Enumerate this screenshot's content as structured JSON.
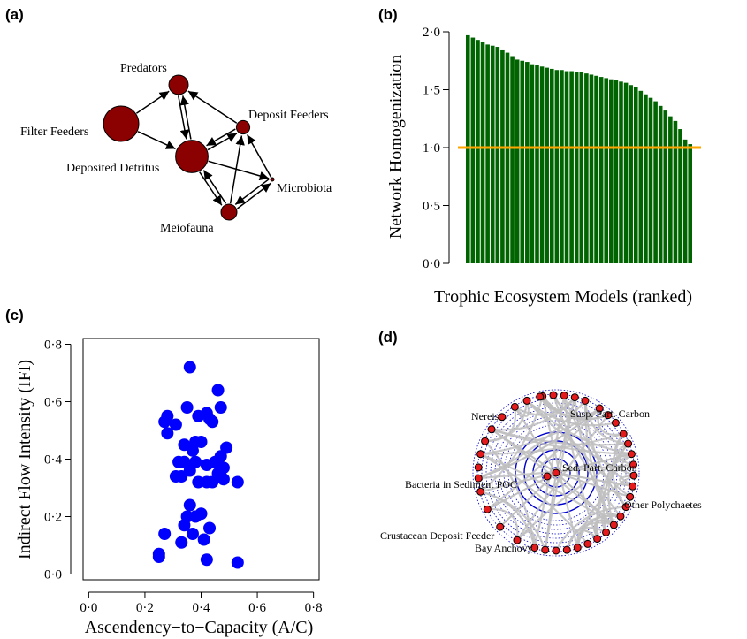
{
  "colors": {
    "node_fill": "#8b0000",
    "bar_fill": "#006400",
    "reference_line": "#ffa500",
    "scatter_point": "#0000ff",
    "network_ring": "#0000cd",
    "network_edge": "#c0c0c0",
    "network_node": "#e41a1c"
  },
  "panels": {
    "a": {
      "label": "(a)"
    },
    "b": {
      "label": "(b)"
    },
    "c": {
      "label": "(c)"
    },
    "d": {
      "label": "(d)"
    }
  },
  "chart_data": [
    {
      "panel": "(a)",
      "type": "network",
      "nodes": [
        {
          "id": "filter",
          "label": "Filter Feeders",
          "relative_size": 1.0
        },
        {
          "id": "predators",
          "label": "Predators",
          "relative_size": 0.55
        },
        {
          "id": "deposit",
          "label": "Deposit Feeders",
          "relative_size": 0.38
        },
        {
          "id": "detritus",
          "label": "Deposited Detritus",
          "relative_size": 0.92
        },
        {
          "id": "microbiota",
          "label": "Microbiota",
          "relative_size": 0.1
        },
        {
          "id": "meiofauna",
          "label": "Meiofauna",
          "relative_size": 0.45
        }
      ],
      "edges": [
        {
          "from": "filter",
          "to": "predators"
        },
        {
          "from": "filter",
          "to": "detritus"
        },
        {
          "from": "predators",
          "to": "detritus"
        },
        {
          "from": "detritus",
          "to": "predators"
        },
        {
          "from": "deposit",
          "to": "predators"
        },
        {
          "from": "deposit",
          "to": "detritus"
        },
        {
          "from": "detritus",
          "to": "deposit"
        },
        {
          "from": "detritus",
          "to": "microbiota"
        },
        {
          "from": "detritus",
          "to": "meiofauna"
        },
        {
          "from": "meiofauna",
          "to": "detritus"
        },
        {
          "from": "microbiota",
          "to": "deposit"
        },
        {
          "from": "microbiota",
          "to": "meiofauna"
        },
        {
          "from": "meiofauna",
          "to": "microbiota"
        },
        {
          "from": "meiofauna",
          "to": "deposit"
        }
      ]
    },
    {
      "panel": "(b)",
      "type": "bar",
      "xlabel": "Trophic Ecosystem Models (ranked)",
      "ylabel": "Network Homogenization",
      "ylim": [
        0,
        2
      ],
      "yticks": [
        "0·0",
        "0·5",
        "1·0",
        "1·5",
        "2·0"
      ],
      "ytick_values": [
        0,
        0.5,
        1.0,
        1.5,
        2.0
      ],
      "reference_line": 1.0,
      "values": [
        1.97,
        1.95,
        1.93,
        1.91,
        1.89,
        1.88,
        1.87,
        1.84,
        1.82,
        1.79,
        1.76,
        1.75,
        1.74,
        1.72,
        1.71,
        1.7,
        1.69,
        1.68,
        1.67,
        1.67,
        1.66,
        1.66,
        1.65,
        1.65,
        1.64,
        1.63,
        1.62,
        1.61,
        1.6,
        1.59,
        1.58,
        1.57,
        1.56,
        1.54,
        1.52,
        1.49,
        1.46,
        1.43,
        1.4,
        1.36,
        1.32,
        1.27,
        1.23,
        1.16,
        1.07,
        1.03
      ]
    },
    {
      "panel": "(c)",
      "type": "scatter",
      "xlabel": "Ascendency−to−Capacity (A/C)",
      "ylabel": "Indirect Flow Intensity (IFI)",
      "xlim": [
        -0.02,
        0.82
      ],
      "ylim": [
        -0.02,
        0.82
      ],
      "xticks": [
        "0·0",
        "0·2",
        "0·4",
        "0·6",
        "0·8"
      ],
      "xtick_values": [
        0,
        0.2,
        0.4,
        0.6,
        0.8
      ],
      "yticks": [
        "0·0",
        "0·2",
        "0·4",
        "0·6",
        "0·8"
      ],
      "ytick_values": [
        0,
        0.2,
        0.4,
        0.6,
        0.8
      ],
      "points": [
        {
          "x": 0.36,
          "y": 0.72
        },
        {
          "x": 0.46,
          "y": 0.64
        },
        {
          "x": 0.35,
          "y": 0.58
        },
        {
          "x": 0.47,
          "y": 0.58
        },
        {
          "x": 0.42,
          "y": 0.56
        },
        {
          "x": 0.28,
          "y": 0.55
        },
        {
          "x": 0.39,
          "y": 0.55
        },
        {
          "x": 0.43,
          "y": 0.54
        },
        {
          "x": 0.44,
          "y": 0.53
        },
        {
          "x": 0.27,
          "y": 0.53
        },
        {
          "x": 0.31,
          "y": 0.52
        },
        {
          "x": 0.28,
          "y": 0.49
        },
        {
          "x": 0.38,
          "y": 0.46
        },
        {
          "x": 0.4,
          "y": 0.46
        },
        {
          "x": 0.34,
          "y": 0.45
        },
        {
          "x": 0.49,
          "y": 0.44
        },
        {
          "x": 0.37,
          "y": 0.43
        },
        {
          "x": 0.47,
          "y": 0.41
        },
        {
          "x": 0.45,
          "y": 0.39
        },
        {
          "x": 0.32,
          "y": 0.39
        },
        {
          "x": 0.34,
          "y": 0.39
        },
        {
          "x": 0.38,
          "y": 0.39
        },
        {
          "x": 0.42,
          "y": 0.38
        },
        {
          "x": 0.48,
          "y": 0.37
        },
        {
          "x": 0.36,
          "y": 0.36
        },
        {
          "x": 0.46,
          "y": 0.35
        },
        {
          "x": 0.31,
          "y": 0.34
        },
        {
          "x": 0.33,
          "y": 0.34
        },
        {
          "x": 0.47,
          "y": 0.34
        },
        {
          "x": 0.48,
          "y": 0.33
        },
        {
          "x": 0.39,
          "y": 0.32
        },
        {
          "x": 0.42,
          "y": 0.32
        },
        {
          "x": 0.44,
          "y": 0.32
        },
        {
          "x": 0.53,
          "y": 0.32
        },
        {
          "x": 0.36,
          "y": 0.24
        },
        {
          "x": 0.4,
          "y": 0.21
        },
        {
          "x": 0.35,
          "y": 0.2
        },
        {
          "x": 0.38,
          "y": 0.2
        },
        {
          "x": 0.34,
          "y": 0.17
        },
        {
          "x": 0.43,
          "y": 0.16
        },
        {
          "x": 0.27,
          "y": 0.14
        },
        {
          "x": 0.37,
          "y": 0.14
        },
        {
          "x": 0.41,
          "y": 0.12
        },
        {
          "x": 0.33,
          "y": 0.11
        },
        {
          "x": 0.25,
          "y": 0.07
        },
        {
          "x": 0.25,
          "y": 0.06
        },
        {
          "x": 0.42,
          "y": 0.05
        },
        {
          "x": 0.53,
          "y": 0.04
        }
      ]
    },
    {
      "panel": "(d)",
      "type": "network",
      "layout": "circular",
      "labels": [
        {
          "name": "Nereis"
        },
        {
          "name": "Susp. Part. Carbon"
        },
        {
          "name": "Sed. Part. Carbon"
        },
        {
          "name": "Bacteria in Sediment POC"
        },
        {
          "name": "Other Polychaetes"
        },
        {
          "name": "Crustacean Deposit Feeder"
        },
        {
          "name": "Bay Anchovy"
        }
      ]
    }
  ]
}
